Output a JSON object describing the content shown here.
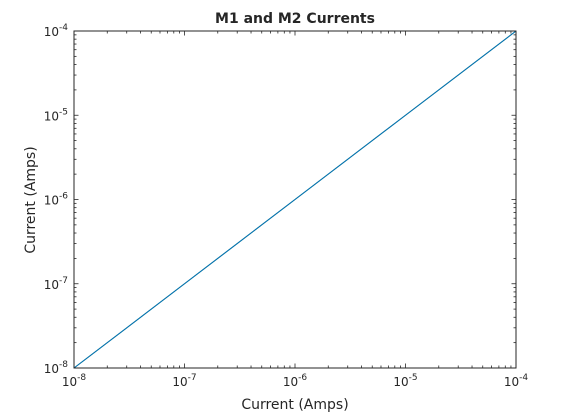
{
  "chart_data": {
    "type": "line",
    "title": "M1 and M2 Currents",
    "xlabel": "Current (Amps)",
    "ylabel": "Current (Amps)",
    "xscale": "log",
    "yscale": "log",
    "xlim": [
      1e-08,
      0.0001
    ],
    "ylim": [
      1e-08,
      0.0001
    ],
    "grid": false,
    "legend": "none",
    "tick_base": "10",
    "x_ticks": [
      {
        "value": 1e-08,
        "exp": "-8"
      },
      {
        "value": 1e-07,
        "exp": "-7"
      },
      {
        "value": 1e-06,
        "exp": "-6"
      },
      {
        "value": 1e-05,
        "exp": "-5"
      },
      {
        "value": 0.0001,
        "exp": "-4"
      }
    ],
    "y_ticks": [
      {
        "value": 1e-08,
        "exp": "-8"
      },
      {
        "value": 1e-07,
        "exp": "-7"
      },
      {
        "value": 1e-06,
        "exp": "-6"
      },
      {
        "value": 1e-05,
        "exp": "-5"
      },
      {
        "value": 0.0001,
        "exp": "-4"
      }
    ],
    "series": [
      {
        "color": "#0072BD",
        "x": [
          1e-08,
          1e-07,
          1e-06,
          1e-05,
          0.0001
        ],
        "y": [
          1e-08,
          1e-07,
          1e-06,
          1e-05,
          0.0001
        ]
      },
      {
        "color": "#2E7D32",
        "x": [
          1e-08,
          1e-07,
          1e-06,
          1e-05,
          0.0001
        ],
        "y": [
          1e-08,
          1e-07,
          1e-06,
          1e-05,
          0.0001
        ]
      }
    ]
  }
}
